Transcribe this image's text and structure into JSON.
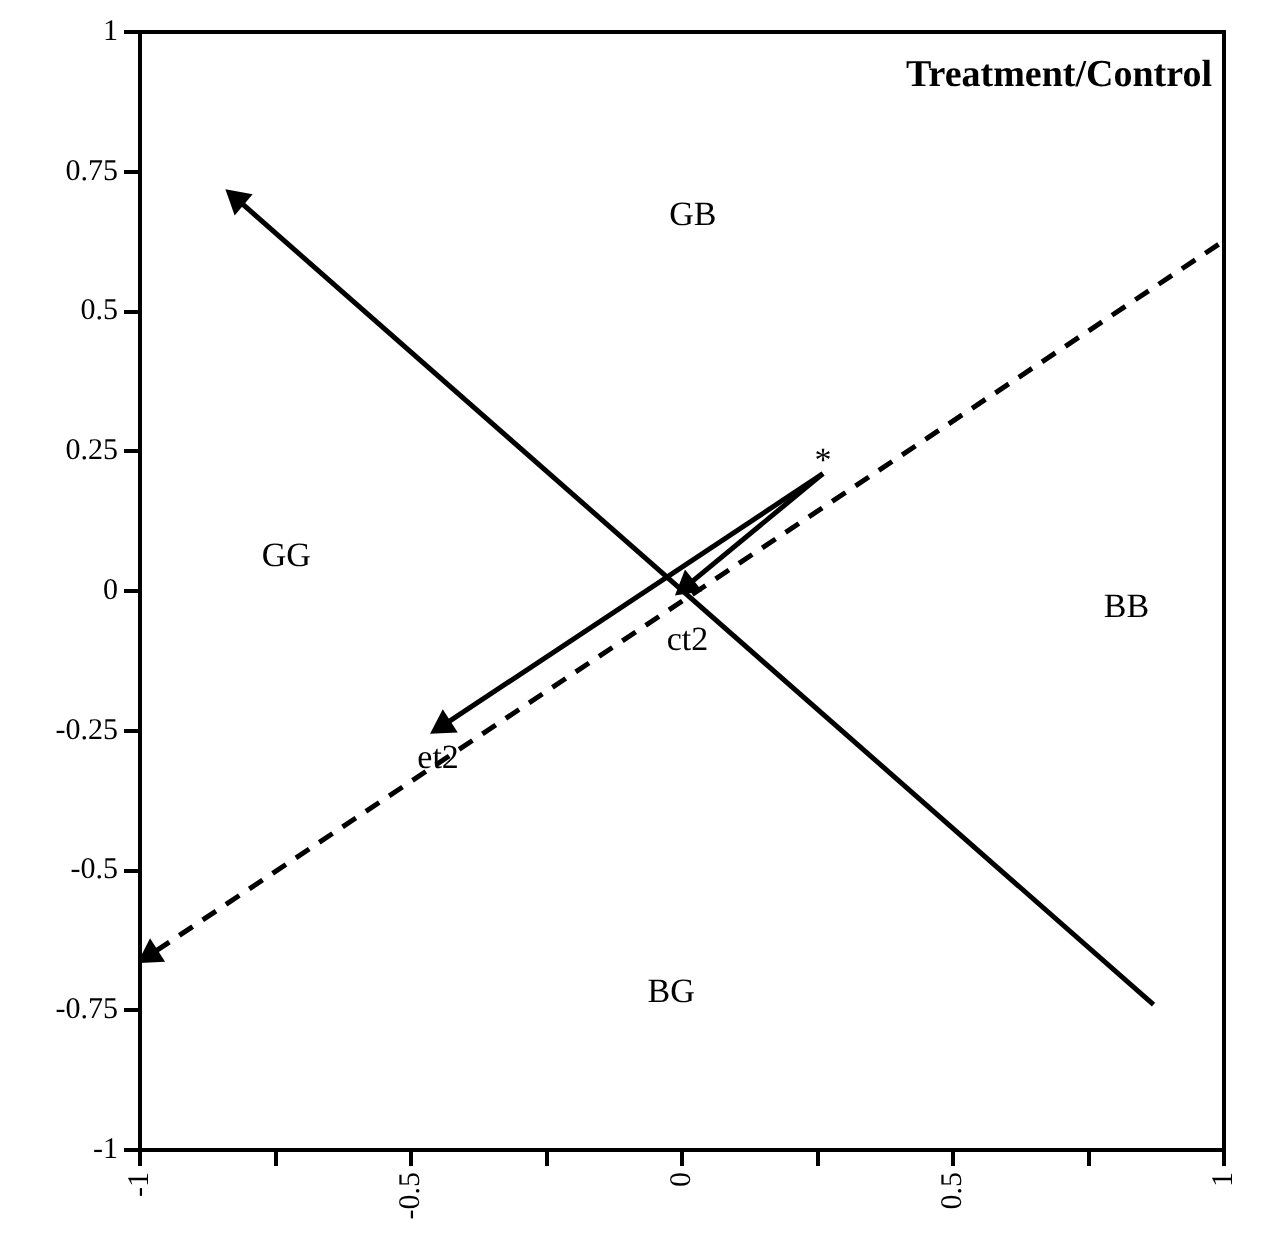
{
  "chart_data": {
    "type": "line",
    "title": "Treatment/Control",
    "xlim": [
      -1,
      1
    ],
    "ylim": [
      -1,
      1
    ],
    "xticks": [
      -1,
      {
        "value": -0.75,
        "label": null
      },
      -0.5,
      {
        "value": -0.25,
        "label": null
      },
      0,
      {
        "value": 0.25,
        "label": null
      },
      0.5,
      {
        "value": 0.75,
        "label": null
      },
      1
    ],
    "yticks": [
      -1,
      -0.75,
      -0.5,
      -0.25,
      0,
      0.25,
      0.5,
      0.75,
      1
    ],
    "grid": false,
    "legend": false,
    "series": [
      {
        "x": [
          0.87,
          -0.82
        ],
        "values": [
          -0.74,
          0.7
        ],
        "color": "#000000",
        "line_style": "solid"
      },
      {
        "x": [
          0.99,
          -0.98
        ],
        "values": [
          0.62,
          -0.65
        ],
        "color": "#000000",
        "line_style": "dashed"
      },
      {
        "x": [
          0.26,
          -0.44
        ],
        "values": [
          0.21,
          -0.24
        ],
        "color": "#000000",
        "line_style": "solid"
      },
      {
        "x": [
          0.26,
          0.01
        ],
        "values": [
          0.21,
          0.01
        ],
        "color": "#000000",
        "line_style": "solid"
      }
    ],
    "annotations": [
      "GB",
      "GG",
      "BB",
      "BG",
      "ct2",
      "*",
      {
        "text": "et2",
        "x": -0.45,
        "y": -0.3
      }
    ]
  }
}
